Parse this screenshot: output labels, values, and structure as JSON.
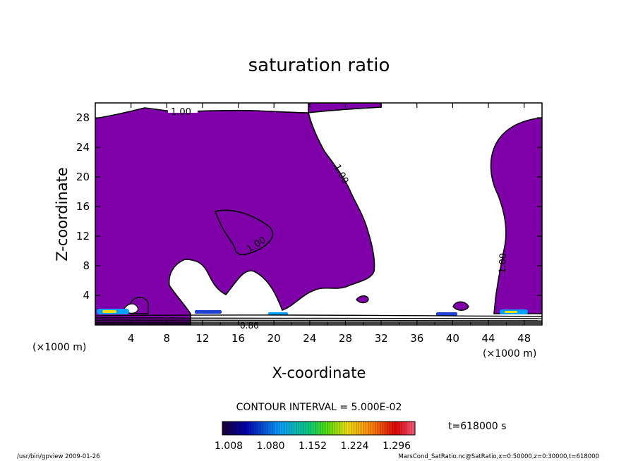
{
  "chart_data": {
    "type": "heatmap",
    "title": "saturation ratio",
    "xlabel": "X-coordinate",
    "ylabel": "Z-coordinate",
    "x_unit": "(×1000 m)",
    "z_unit": "(×1000 m)",
    "xlim": [
      0,
      50
    ],
    "ylim": [
      0,
      30
    ],
    "x_ticks": [
      "4",
      "8",
      "12",
      "16",
      "20",
      "24",
      "28",
      "32",
      "36",
      "40",
      "44",
      "48"
    ],
    "y_ticks": [
      "4",
      "8",
      "12",
      "16",
      "20",
      "24",
      "28"
    ],
    "contour_labels": [
      "1.00",
      "1.00",
      "1.00",
      "1.00",
      "0.80"
    ],
    "contour_interval": "CONTOUR INTERVAL = 5.000E-02",
    "colorbar": {
      "tick_labels": [
        "1.008",
        "1.080",
        "1.152",
        "1.224",
        "1.296"
      ],
      "colors": [
        "#1a0033",
        "#0000b0",
        "#00a0ff",
        "#00d080",
        "#60e000",
        "#f0e000",
        "#ff8000",
        "#e00000",
        "#ff6080"
      ]
    },
    "time_label": "t=618000 s",
    "fill_color": "#7f00a8",
    "footer_left": "/usr/bin/gpview  2009-01-26",
    "footer_right": "MarsCond_SatRatio.nc@SatRatio,x=0:50000,z=0:30000,t=618000"
  }
}
